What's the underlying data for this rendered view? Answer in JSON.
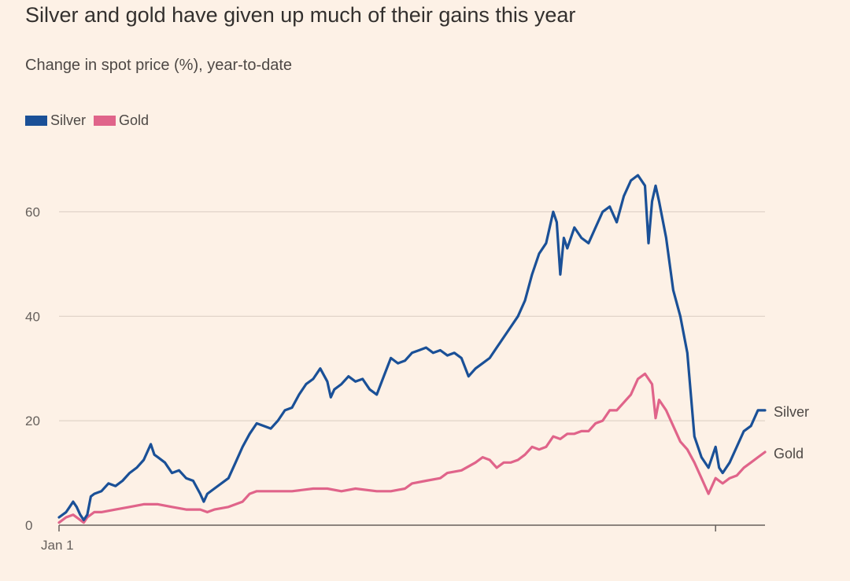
{
  "chart_data": {
    "type": "line",
    "title": "Silver and gold have given up much of their gains this year",
    "subtitle": "Change in spot price (%), year-to-date",
    "xlabel": "",
    "ylabel": "",
    "x_range": [
      0,
      100
    ],
    "ylim": [
      0,
      70
    ],
    "y_ticks": [
      0,
      20,
      40,
      60
    ],
    "x_tick_labels": [
      {
        "x": 0,
        "label": "Jan 1"
      },
      {
        "x": 93,
        "label": ""
      }
    ],
    "grid": true,
    "legend": "top-left",
    "series": [
      {
        "name": "Silver",
        "color": "#1a5097",
        "end_label": "Silver",
        "points": [
          [
            0,
            1.5
          ],
          [
            1,
            2.5
          ],
          [
            1.5,
            3.5
          ],
          [
            2,
            4.5
          ],
          [
            2.5,
            3.5
          ],
          [
            3,
            2
          ],
          [
            3.5,
            1
          ],
          [
            4,
            2
          ],
          [
            4.5,
            5.5
          ],
          [
            5,
            6
          ],
          [
            6,
            6.5
          ],
          [
            7,
            8
          ],
          [
            8,
            7.5
          ],
          [
            9,
            8.5
          ],
          [
            10,
            10
          ],
          [
            11,
            11
          ],
          [
            12,
            12.5
          ],
          [
            13,
            15.5
          ],
          [
            13.5,
            13.5
          ],
          [
            14,
            13
          ],
          [
            15,
            12
          ],
          [
            16,
            10
          ],
          [
            17,
            10.5
          ],
          [
            18,
            9
          ],
          [
            19,
            8.5
          ],
          [
            20,
            6
          ],
          [
            20.5,
            4.5
          ],
          [
            21,
            6
          ],
          [
            22,
            7
          ],
          [
            24,
            9
          ],
          [
            25,
            12
          ],
          [
            26,
            15
          ],
          [
            27,
            17.5
          ],
          [
            28,
            19.5
          ],
          [
            29,
            19
          ],
          [
            30,
            18.5
          ],
          [
            31,
            20
          ],
          [
            32,
            22
          ],
          [
            33,
            22.5
          ],
          [
            34,
            25
          ],
          [
            35,
            27
          ],
          [
            36,
            28
          ],
          [
            37,
            30
          ],
          [
            38,
            27.5
          ],
          [
            38.5,
            24.5
          ],
          [
            39,
            26
          ],
          [
            40,
            27
          ],
          [
            41,
            28.5
          ],
          [
            42,
            27.5
          ],
          [
            43,
            28
          ],
          [
            44,
            26
          ],
          [
            45,
            25
          ],
          [
            46,
            28.5
          ],
          [
            47,
            32
          ],
          [
            48,
            31
          ],
          [
            49,
            31.5
          ],
          [
            50,
            33
          ],
          [
            51,
            33.5
          ],
          [
            52,
            34
          ],
          [
            53,
            33
          ],
          [
            54,
            33.5
          ],
          [
            55,
            32.5
          ],
          [
            56,
            33
          ],
          [
            57,
            32
          ],
          [
            58,
            28.5
          ],
          [
            59,
            30
          ],
          [
            60,
            31
          ],
          [
            61,
            32
          ],
          [
            62,
            34
          ],
          [
            63,
            36
          ],
          [
            64,
            38
          ],
          [
            65,
            40
          ],
          [
            66,
            43
          ],
          [
            67,
            48
          ],
          [
            68,
            52
          ],
          [
            69,
            54
          ],
          [
            70,
            60
          ],
          [
            70.5,
            58
          ],
          [
            71,
            48
          ],
          [
            71.5,
            55
          ],
          [
            72,
            53
          ],
          [
            73,
            57
          ],
          [
            74,
            55
          ],
          [
            75,
            54
          ],
          [
            76,
            57
          ],
          [
            77,
            60
          ],
          [
            78,
            61
          ],
          [
            79,
            58
          ],
          [
            80,
            63
          ],
          [
            81,
            66
          ],
          [
            82,
            67
          ],
          [
            83,
            65
          ],
          [
            83.5,
            54
          ],
          [
            84,
            62
          ],
          [
            84.5,
            65
          ],
          [
            85,
            62
          ],
          [
            86,
            55
          ],
          [
            87,
            45
          ],
          [
            88,
            40
          ],
          [
            89,
            33
          ],
          [
            90,
            17
          ],
          [
            91,
            13
          ],
          [
            92,
            11
          ],
          [
            93,
            15
          ],
          [
            93.5,
            11
          ],
          [
            94,
            10
          ],
          [
            95,
            12
          ],
          [
            96,
            15
          ],
          [
            97,
            18
          ],
          [
            98,
            19
          ],
          [
            99,
            22
          ],
          [
            100,
            22
          ]
        ]
      },
      {
        "name": "Gold",
        "color": "#e0648a",
        "end_label": "Gold",
        "points": [
          [
            0,
            0.5
          ],
          [
            1,
            1.5
          ],
          [
            2,
            2
          ],
          [
            3,
            1
          ],
          [
            3.5,
            0.5
          ],
          [
            4,
            1.5
          ],
          [
            5,
            2.5
          ],
          [
            6,
            2.5
          ],
          [
            8,
            3
          ],
          [
            10,
            3.5
          ],
          [
            12,
            4
          ],
          [
            14,
            4
          ],
          [
            16,
            3.5
          ],
          [
            18,
            3
          ],
          [
            20,
            3
          ],
          [
            21,
            2.5
          ],
          [
            22,
            3
          ],
          [
            24,
            3.5
          ],
          [
            26,
            4.5
          ],
          [
            27,
            6
          ],
          [
            28,
            6.5
          ],
          [
            30,
            6.5
          ],
          [
            33,
            6.5
          ],
          [
            36,
            7
          ],
          [
            38,
            7
          ],
          [
            40,
            6.5
          ],
          [
            42,
            7
          ],
          [
            45,
            6.5
          ],
          [
            47,
            6.5
          ],
          [
            49,
            7
          ],
          [
            50,
            8
          ],
          [
            52,
            8.5
          ],
          [
            54,
            9
          ],
          [
            55,
            10
          ],
          [
            57,
            10.5
          ],
          [
            59,
            12
          ],
          [
            60,
            13
          ],
          [
            61,
            12.5
          ],
          [
            62,
            11
          ],
          [
            63,
            12
          ],
          [
            64,
            12
          ],
          [
            65,
            12.5
          ],
          [
            66,
            13.5
          ],
          [
            67,
            15
          ],
          [
            68,
            14.5
          ],
          [
            69,
            15
          ],
          [
            70,
            17
          ],
          [
            71,
            16.5
          ],
          [
            72,
            17.5
          ],
          [
            73,
            17.5
          ],
          [
            74,
            18
          ],
          [
            75,
            18
          ],
          [
            76,
            19.5
          ],
          [
            77,
            20
          ],
          [
            78,
            22
          ],
          [
            79,
            22
          ],
          [
            80,
            23.5
          ],
          [
            81,
            25
          ],
          [
            82,
            28
          ],
          [
            83,
            29
          ],
          [
            84,
            27
          ],
          [
            84.5,
            20.5
          ],
          [
            85,
            24
          ],
          [
            86,
            22
          ],
          [
            87,
            19
          ],
          [
            88,
            16
          ],
          [
            89,
            14.5
          ],
          [
            90,
            12
          ],
          [
            91,
            9
          ],
          [
            92,
            6
          ],
          [
            93,
            9
          ],
          [
            94,
            8
          ],
          [
            95,
            9
          ],
          [
            96,
            9.5
          ],
          [
            97,
            11
          ],
          [
            98,
            12
          ],
          [
            99,
            13
          ],
          [
            100,
            14
          ]
        ]
      }
    ]
  }
}
